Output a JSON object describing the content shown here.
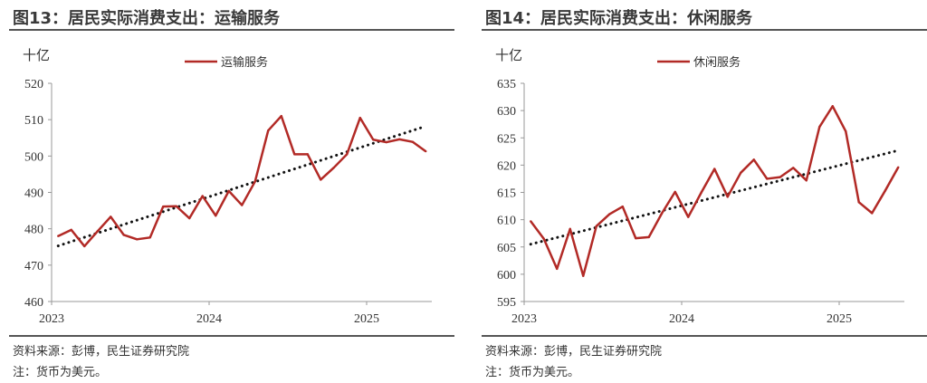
{
  "source_text": "资料来源：彭博，民生证券研究院",
  "note_text": "注：货币为美元。",
  "colors": {
    "series": "#b22a26",
    "trend": "#111111",
    "axis": "#999999"
  },
  "chart_data": [
    {
      "type": "line",
      "title": "图13：居民实际消费支出：运输服务",
      "unit": "十亿",
      "legend_position": "top-center",
      "x_start": "2023-01",
      "x_frequency": "monthly",
      "xticks": [
        "2023",
        "2024",
        "2025"
      ],
      "yticks": [
        460,
        470,
        480,
        490,
        500,
        510,
        520
      ],
      "ylim": [
        460,
        520
      ],
      "series": [
        {
          "name": "运输服务",
          "values": [
            478.0,
            479.7,
            475.2,
            479.3,
            483.3,
            478.3,
            477.1,
            477.6,
            486.1,
            486.2,
            482.9,
            489.0,
            483.6,
            490.4,
            486.5,
            493.0,
            507.0,
            511.0,
            500.5,
            500.5,
            493.5,
            496.8,
            500.5,
            510.5,
            504.5,
            503.8,
            504.6,
            503.9,
            501.3
          ]
        },
        {
          "style": "dotted-trendline",
          "values": [
            475.3,
            508.2
          ]
        }
      ]
    },
    {
      "type": "line",
      "title": "图14：居民实际消费支出：休闲服务",
      "unit": "十亿",
      "legend_position": "top-center",
      "x_start": "2023-01",
      "x_frequency": "monthly",
      "xticks": [
        "2023",
        "2024",
        "2025"
      ],
      "yticks": [
        595,
        600,
        605,
        610,
        615,
        620,
        625,
        630,
        635
      ],
      "ylim": [
        595,
        635
      ],
      "series": [
        {
          "name": "休闲服务",
          "values": [
            609.7,
            606.5,
            601.0,
            608.3,
            599.7,
            608.8,
            611.0,
            612.4,
            606.6,
            606.8,
            611.2,
            615.1,
            610.5,
            615.0,
            619.3,
            614.2,
            618.6,
            621.0,
            617.5,
            617.8,
            619.5,
            617.2,
            627.0,
            630.8,
            626.2,
            613.2,
            611.2,
            615.3,
            619.6
          ]
        },
        {
          "style": "dotted-trendline",
          "values": [
            605.5,
            622.7
          ]
        }
      ]
    }
  ]
}
